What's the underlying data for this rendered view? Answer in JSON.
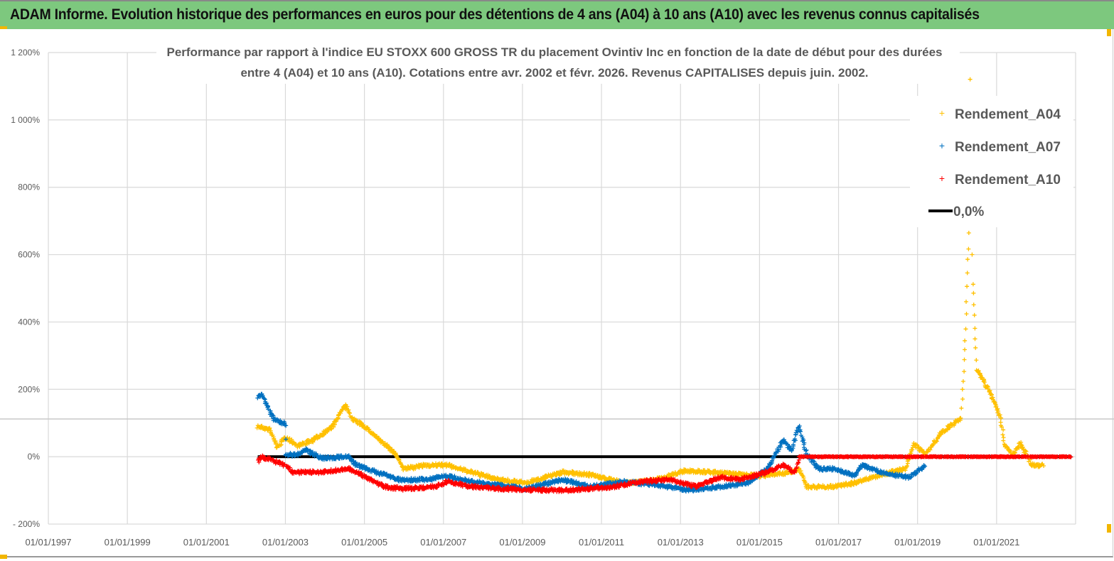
{
  "header": {
    "title": "ADAM Informe. Evolution historique des performances en euros pour des détentions de 4 ans (A04) à 10 ans (A10) avec les revenus connus capitalisés"
  },
  "chart_data": {
    "type": "scatter",
    "title_lines": [
      "Performance par rapport à l'indice EU STOXX 600 GROSS TR  du placement Ovintiv Inc en fonction de la date de début pour des durées",
      "entre 4 (A04) et 10 ans (A10). Cotations entre avr. 2002 et févr. 2026. Revenus CAPITALISES depuis juin. 2002."
    ],
    "xlabel": "",
    "ylabel": "",
    "xlim": [
      "1997-01-01",
      "2023-01-01"
    ],
    "ylim": [
      -200,
      1200
    ],
    "y_ticks": [
      -200,
      0,
      200,
      400,
      600,
      800,
      1000,
      1200
    ],
    "y_tick_labels": [
      "- 200%",
      "0%",
      "200%",
      "400%",
      "600%",
      "800%",
      "1 000%",
      "1 200%"
    ],
    "x_tick_labels": [
      "01/01/1997",
      "01/01/1999",
      "01/01/2001",
      "01/01/2003",
      "01/01/2005",
      "01/01/2007",
      "01/01/2009",
      "01/01/2011",
      "01/01/2013",
      "01/01/2015",
      "01/01/2017",
      "01/01/2019",
      "01/01/2021"
    ],
    "grid": true,
    "legend_position": "top-right",
    "series": [
      {
        "name": "Rendement_A04",
        "color": "#FFC000",
        "marker": "plus",
        "points": [
          [
            2002.3,
            90
          ],
          [
            2002.6,
            80
          ],
          [
            2002.8,
            27
          ],
          [
            2003.0,
            59
          ],
          [
            2003.3,
            32
          ],
          [
            2003.7,
            49
          ],
          [
            2004.2,
            90
          ],
          [
            2004.5,
            154
          ],
          [
            2004.7,
            112
          ],
          [
            2005.0,
            90
          ],
          [
            2005.3,
            59
          ],
          [
            2005.8,
            6
          ],
          [
            2006.0,
            -36
          ],
          [
            2006.6,
            -25
          ],
          [
            2007.1,
            -25
          ],
          [
            2007.7,
            -46
          ],
          [
            2008.4,
            -68
          ],
          [
            2009.1,
            -78
          ],
          [
            2010.0,
            -46
          ],
          [
            2010.7,
            -53
          ],
          [
            2011.6,
            -78
          ],
          [
            2012.4,
            -68
          ],
          [
            2013.1,
            -42
          ],
          [
            2013.8,
            -46
          ],
          [
            2014.5,
            -53
          ],
          [
            2015.1,
            -57
          ],
          [
            2015.8,
            -46
          ],
          [
            2016.0,
            -36
          ],
          [
            2016.2,
            -89
          ],
          [
            2016.9,
            -89
          ],
          [
            2017.4,
            -78
          ],
          [
            2018.1,
            -53
          ],
          [
            2018.7,
            -36
          ],
          [
            2018.9,
            38
          ],
          [
            2019.2,
            6
          ],
          [
            2019.6,
            70
          ],
          [
            2019.8,
            90
          ],
          [
            2020.1,
            112
          ],
          [
            2020.2,
            344
          ],
          [
            2020.3,
            660
          ],
          [
            2020.32,
            1124
          ],
          [
            2020.4,
            513
          ],
          [
            2020.5,
            259
          ],
          [
            2020.7,
            217
          ],
          [
            2020.9,
            175
          ],
          [
            2021.1,
            112
          ],
          [
            2021.2,
            38
          ],
          [
            2021.4,
            6
          ],
          [
            2021.6,
            38
          ],
          [
            2021.9,
            -25
          ],
          [
            2022.2,
            -25
          ]
        ]
      },
      {
        "name": "Rendement_A07",
        "color": "#0070C0",
        "marker": "plus",
        "points": [
          [
            2002.3,
            175
          ],
          [
            2002.4,
            186
          ],
          [
            2002.7,
            112
          ],
          [
            2003.0,
            97
          ],
          [
            2003.02,
            6
          ],
          [
            2003.3,
            6
          ],
          [
            2003.5,
            21
          ],
          [
            2003.9,
            -4
          ],
          [
            2004.6,
            0
          ],
          [
            2004.8,
            -25
          ],
          [
            2005.3,
            -46
          ],
          [
            2005.9,
            -68
          ],
          [
            2006.6,
            -68
          ],
          [
            2007.1,
            -57
          ],
          [
            2007.7,
            -74
          ],
          [
            2008.4,
            -84
          ],
          [
            2009.1,
            -95
          ],
          [
            2010.0,
            -68
          ],
          [
            2010.7,
            -89
          ],
          [
            2011.6,
            -74
          ],
          [
            2012.4,
            -84
          ],
          [
            2013.2,
            -99
          ],
          [
            2014.0,
            -89
          ],
          [
            2014.7,
            -78
          ],
          [
            2015.2,
            -36
          ],
          [
            2015.6,
            49
          ],
          [
            2015.8,
            17
          ],
          [
            2016.0,
            91
          ],
          [
            2016.2,
            6
          ],
          [
            2016.5,
            -36
          ],
          [
            2016.9,
            -36
          ],
          [
            2017.4,
            -57
          ],
          [
            2017.6,
            -25
          ],
          [
            2018.1,
            -46
          ],
          [
            2018.5,
            -57
          ],
          [
            2018.8,
            -61
          ],
          [
            2019.2,
            -25
          ]
        ]
      },
      {
        "name": "Rendement_A10",
        "color": "#FF0000",
        "marker": "plus",
        "points": [
          [
            2002.3,
            -15
          ],
          [
            2002.4,
            0
          ],
          [
            2003.0,
            -25
          ],
          [
            2003.2,
            -46
          ],
          [
            2003.9,
            -46
          ],
          [
            2004.6,
            -36
          ],
          [
            2004.8,
            -46
          ],
          [
            2005.5,
            -89
          ],
          [
            2006.0,
            -95
          ],
          [
            2006.8,
            -89
          ],
          [
            2007.1,
            -74
          ],
          [
            2007.7,
            -89
          ],
          [
            2008.4,
            -95
          ],
          [
            2009.5,
            -99
          ],
          [
            2010.2,
            -99
          ],
          [
            2011.3,
            -89
          ],
          [
            2012.0,
            -74
          ],
          [
            2012.7,
            -68
          ],
          [
            2013.4,
            -89
          ],
          [
            2014.0,
            -61
          ],
          [
            2014.5,
            -68
          ],
          [
            2015.2,
            -46
          ],
          [
            2015.6,
            -25
          ],
          [
            2015.9,
            -46
          ],
          [
            2016.0,
            0
          ],
          [
            2022.9,
            0
          ]
        ]
      },
      {
        "name": "0,0%",
        "color": "#000000",
        "marker": "line",
        "points": [
          [
            2002.3,
            0
          ],
          [
            2022.9,
            0
          ]
        ]
      }
    ]
  }
}
